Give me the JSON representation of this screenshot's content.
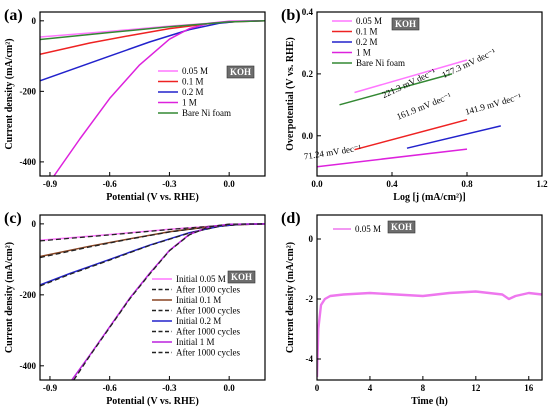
{
  "chart_data": [
    {
      "panel": "(a)",
      "type": "line",
      "xlabel": "Potential (V vs. RHE)",
      "ylabel": "Current density (mA/cm²)",
      "xlim": [
        -0.95,
        0.18
      ],
      "ylim": [
        -440,
        25
      ],
      "xticks": [
        -0.9,
        -0.6,
        -0.3,
        0.0
      ],
      "xtick_labels": [
        "-0.9",
        "-0.6",
        "-0.3",
        "0.0"
      ],
      "yticks": [
        0,
        -200,
        -400
      ],
      "ytick_labels": [
        "0",
        "-200",
        "-400"
      ],
      "electrolyte_label": "KOH",
      "legend_position": "right",
      "series": [
        {
          "name": "0.05 M",
          "color": "#ff77ff",
          "x": [
            -0.95,
            -0.6,
            -0.3,
            0.0,
            0.18
          ],
          "y": [
            -46,
            -30,
            -15,
            -3,
            0
          ]
        },
        {
          "name": "0.1 M",
          "color": "#ee2222",
          "x": [
            -0.95,
            -0.7,
            -0.5,
            -0.3,
            -0.1,
            0.05,
            0.18
          ],
          "y": [
            -95,
            -63,
            -42,
            -22,
            -8,
            -2,
            0
          ]
        },
        {
          "name": "0.2 M",
          "color": "#2222cc",
          "x": [
            -0.95,
            -0.8,
            -0.6,
            -0.4,
            -0.2,
            -0.05,
            0.05,
            0.18
          ],
          "y": [
            -170,
            -140,
            -100,
            -60,
            -25,
            -7,
            -1,
            0
          ]
        },
        {
          "name": "1 M",
          "color": "#dd22dd",
          "x": [
            -0.88,
            -0.75,
            -0.6,
            -0.45,
            -0.3,
            -0.2,
            -0.1,
            0.0,
            0.18
          ],
          "y": [
            -440,
            -335,
            -220,
            -125,
            -52,
            -22,
            -7,
            -1,
            0
          ]
        },
        {
          "name": "Bare Ni foam",
          "color": "#338833",
          "x": [
            -0.95,
            -0.6,
            -0.3,
            0.0,
            0.18
          ],
          "y": [
            -53,
            -33,
            -17,
            -3,
            0
          ]
        }
      ]
    },
    {
      "panel": "(b)",
      "type": "line",
      "xlabel": "Log [j (mA/cm²)]",
      "ylabel": "Overpotential (V vs. RHE)",
      "xlim": [
        0.0,
        1.2
      ],
      "ylim": [
        -0.13,
        0.4
      ],
      "xticks": [
        0.0,
        0.4,
        0.8,
        1.2
      ],
      "xtick_labels": [
        "0.0",
        "0.4",
        "0.8",
        "1.2"
      ],
      "yticks": [
        0.0,
        0.2
      ],
      "ytick_labels": [
        "0.0",
        "0.2"
      ],
      "top_tick_label": "0.4",
      "electrolyte_label": "KOH",
      "legend_position": "top-left",
      "series": [
        {
          "name": "0.05 M",
          "color": "#ff77ff",
          "x": [
            0.2,
            0.8
          ],
          "y": [
            0.14,
            0.245
          ]
        },
        {
          "name": "0.1 M",
          "color": "#ee2222",
          "x": [
            0.2,
            0.8
          ],
          "y": [
            -0.045,
            0.052
          ]
        },
        {
          "name": "0.2 M",
          "color": "#2222cc",
          "x": [
            0.48,
            0.98
          ],
          "y": [
            -0.04,
            0.032
          ]
        },
        {
          "name": "1 M",
          "color": "#dd22dd",
          "x": [
            0.0,
            0.8
          ],
          "y": [
            -0.1,
            -0.043
          ]
        },
        {
          "name": "Bare Ni foam",
          "color": "#338833",
          "x": [
            0.12,
            0.72
          ],
          "y": [
            0.1,
            0.2
          ]
        }
      ],
      "annotations": [
        "177.3 mV dec⁻¹",
        "221.3 mV dec⁻¹",
        "161.9 mV dec⁻¹",
        "141.9 mV dec⁻¹",
        "71.24 mV dec⁻¹"
      ]
    },
    {
      "panel": "(c)",
      "type": "line",
      "xlabel": "Potential (V vs. RHE)",
      "ylabel": "Current density (mA/cm²)",
      "xlim": [
        -0.95,
        0.18
      ],
      "ylim": [
        -440,
        25
      ],
      "xticks": [
        -0.9,
        -0.6,
        -0.3,
        0.0
      ],
      "xtick_labels": [
        "-0.9",
        "-0.6",
        "-0.3",
        "0.0"
      ],
      "yticks": [
        0,
        -200,
        -400
      ],
      "ytick_labels": [
        "0",
        "-200",
        "-400"
      ],
      "electrolyte_label": "KOH",
      "legend_position": "right",
      "series": [
        {
          "name": "Initial 0.05 M",
          "color": "#ff77ff",
          "dashed": false,
          "x": [
            -0.95,
            -0.6,
            -0.3,
            0.0,
            0.18
          ],
          "y": [
            -46,
            -30,
            -15,
            -3,
            0
          ]
        },
        {
          "name": "After 1000 cycles",
          "color": "#222222",
          "dashed": true,
          "x": [
            -0.95,
            -0.6,
            -0.3,
            0.0,
            0.18
          ],
          "y": [
            -48,
            -31,
            -16,
            -3,
            0
          ]
        },
        {
          "name": "Initial 0.1 M",
          "color": "#884422",
          "dashed": false,
          "x": [
            -0.95,
            -0.7,
            -0.5,
            -0.3,
            -0.1,
            0.05,
            0.18
          ],
          "y": [
            -92,
            -63,
            -42,
            -22,
            -8,
            -2,
            0
          ]
        },
        {
          "name": "After 1000 cycles",
          "color": "#222222",
          "dashed": true,
          "x": [
            -0.95,
            -0.7,
            -0.5,
            -0.3,
            -0.1,
            0.05,
            0.18
          ],
          "y": [
            -95,
            -65,
            -43,
            -23,
            -8,
            -2,
            0
          ]
        },
        {
          "name": "Initial 0.2 M",
          "color": "#2222cc",
          "dashed": false,
          "x": [
            -0.95,
            -0.8,
            -0.6,
            -0.4,
            -0.2,
            -0.05,
            0.05,
            0.18
          ],
          "y": [
            -172,
            -140,
            -100,
            -60,
            -25,
            -7,
            -1,
            0
          ]
        },
        {
          "name": "After 1000 cycles",
          "color": "#222222",
          "dashed": true,
          "x": [
            -0.95,
            -0.8,
            -0.6,
            -0.4,
            -0.2,
            -0.05,
            0.05,
            0.18
          ],
          "y": [
            -175,
            -142,
            -102,
            -61,
            -26,
            -7,
            -1,
            0
          ]
        },
        {
          "name": "Initial 1 M",
          "color": "#bb22dd",
          "dashed": false,
          "x": [
            -0.79,
            -0.7,
            -0.6,
            -0.5,
            -0.4,
            -0.3,
            -0.2,
            -0.1,
            0.0,
            0.18
          ],
          "y": [
            -440,
            -370,
            -290,
            -210,
            -140,
            -75,
            -30,
            -8,
            -1,
            0
          ]
        },
        {
          "name": "After 1000 cycles",
          "color": "#222222",
          "dashed": true,
          "x": [
            -0.78,
            -0.7,
            -0.6,
            -0.5,
            -0.4,
            -0.3,
            -0.2,
            -0.1,
            0.0,
            0.18
          ],
          "y": [
            -440,
            -372,
            -292,
            -212,
            -142,
            -76,
            -31,
            -8,
            -1,
            0
          ]
        }
      ]
    },
    {
      "panel": "(d)",
      "type": "line",
      "xlabel": "Time (h)",
      "ylabel": "Current density (mA/cm²)",
      "xlim": [
        0,
        17
      ],
      "ylim": [
        -4.7,
        0.8
      ],
      "xticks": [
        0,
        4,
        8,
        12,
        16
      ],
      "xtick_labels": [
        "0",
        "4",
        "8",
        "12",
        "16"
      ],
      "yticks": [
        0,
        -2,
        -4
      ],
      "ytick_labels": [
        "0",
        "-2",
        "-4"
      ],
      "electrolyte_label": "KOH",
      "legend_position": "top-left",
      "series": [
        {
          "name": "0.05 M",
          "color": "#ee77ee",
          "x": [
            0,
            0.1,
            0.3,
            0.6,
            1,
            2,
            4,
            6,
            8,
            10,
            12,
            14,
            14.5,
            15,
            16,
            17
          ],
          "y": [
            -4.6,
            -3.0,
            -2.2,
            -2.0,
            -1.9,
            -1.85,
            -1.8,
            -1.85,
            -1.9,
            -1.8,
            -1.75,
            -1.85,
            -2.0,
            -1.9,
            -1.8,
            -1.85
          ]
        }
      ]
    }
  ]
}
